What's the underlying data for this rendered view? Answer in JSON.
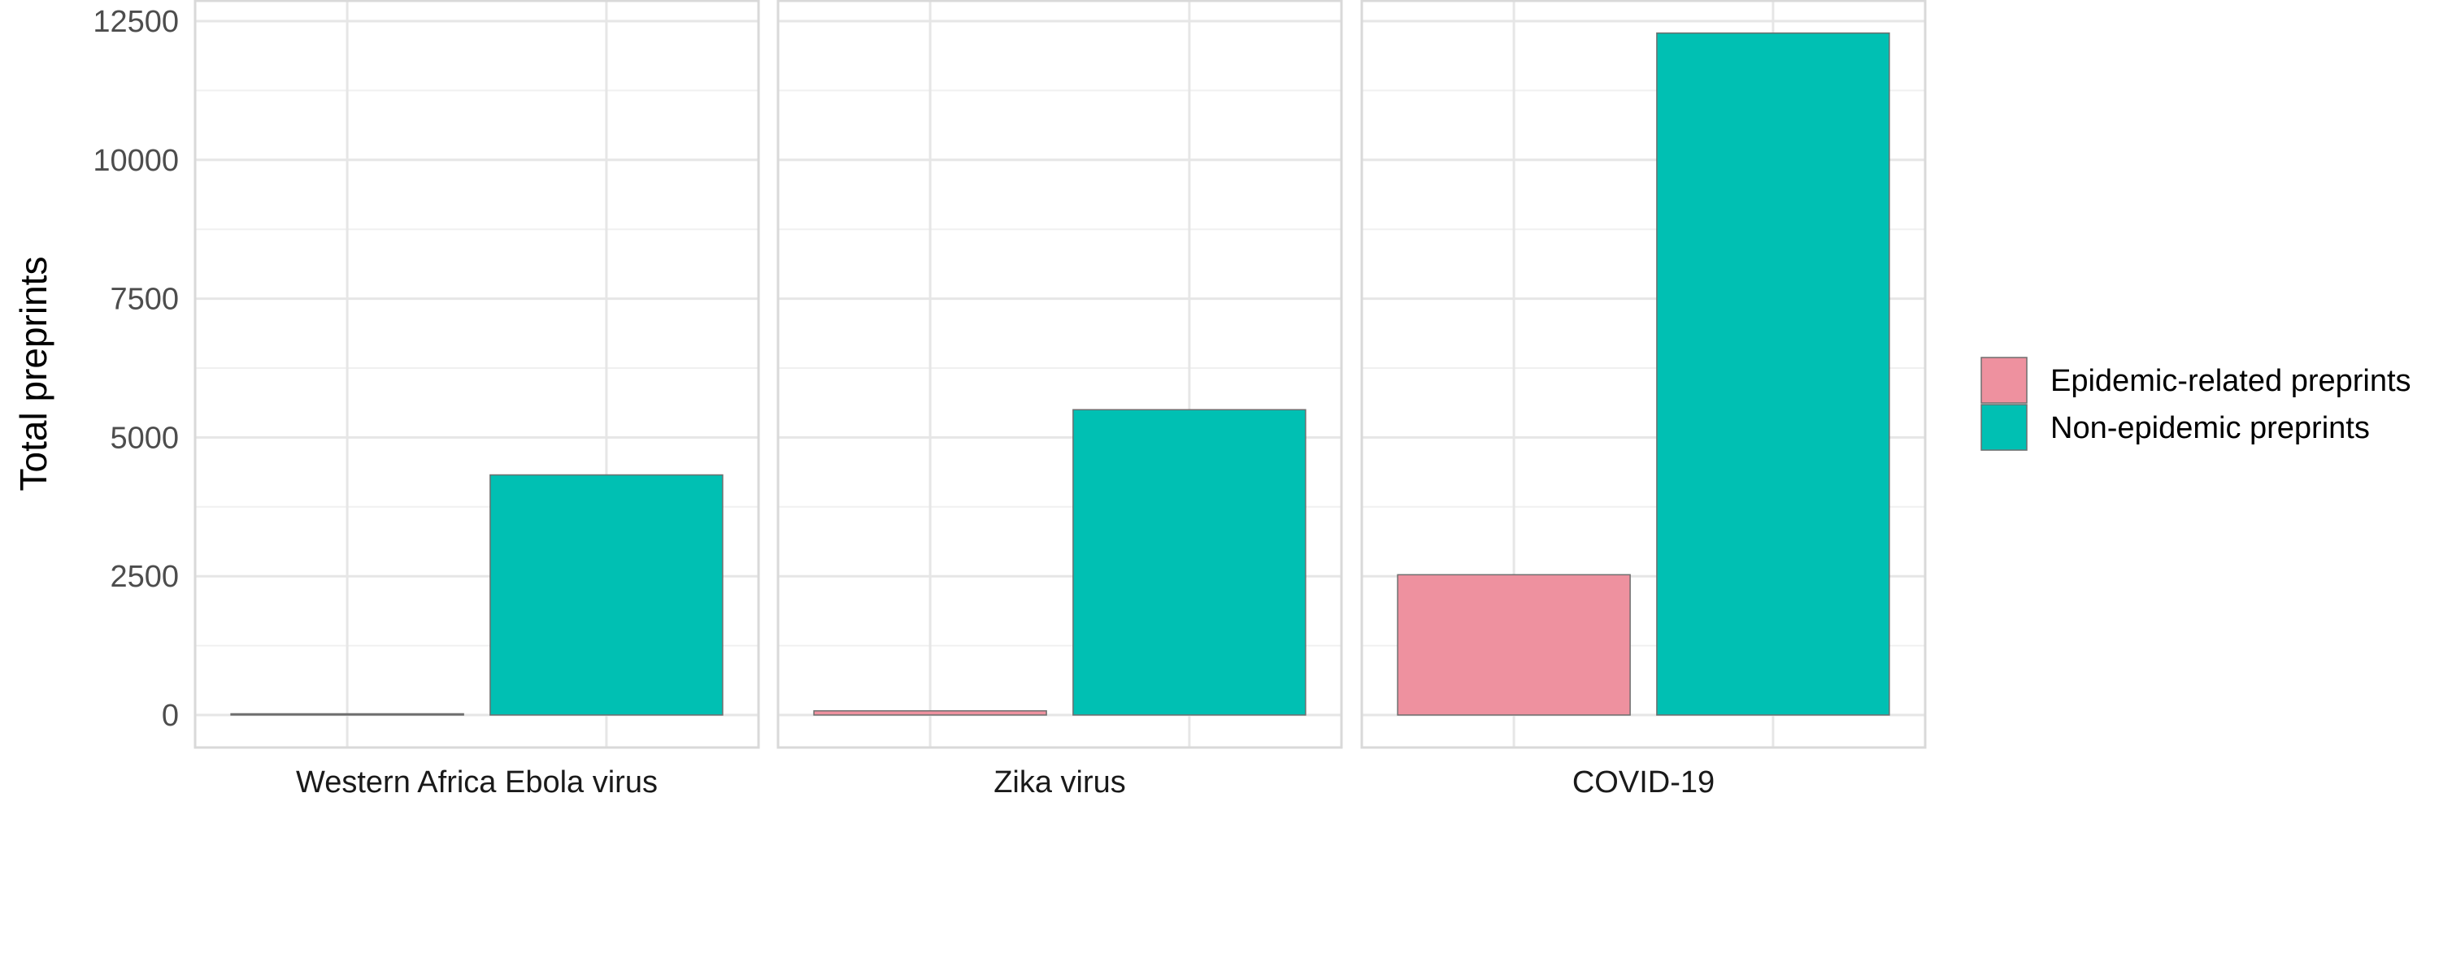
{
  "chart_data": {
    "type": "bar",
    "title": "",
    "xlabel": "",
    "ylabel": "Total preprints",
    "ylim": [
      -1150,
      12900
    ],
    "yticks": [
      0,
      2500,
      5000,
      7500,
      10000,
      12500
    ],
    "grid": true,
    "legend_position": "right",
    "facets": [
      "Western Africa Ebola virus",
      "Zika virus",
      "COVID-19"
    ],
    "series": [
      {
        "name": "Epidemic-related preprints",
        "color": "#ee919f",
        "values": [
          10,
          75,
          2527
        ]
      },
      {
        "name": "Non-epidemic preprints",
        "color": "#00c0b3",
        "values": [
          4325,
          5500,
          12285
        ]
      }
    ]
  }
}
